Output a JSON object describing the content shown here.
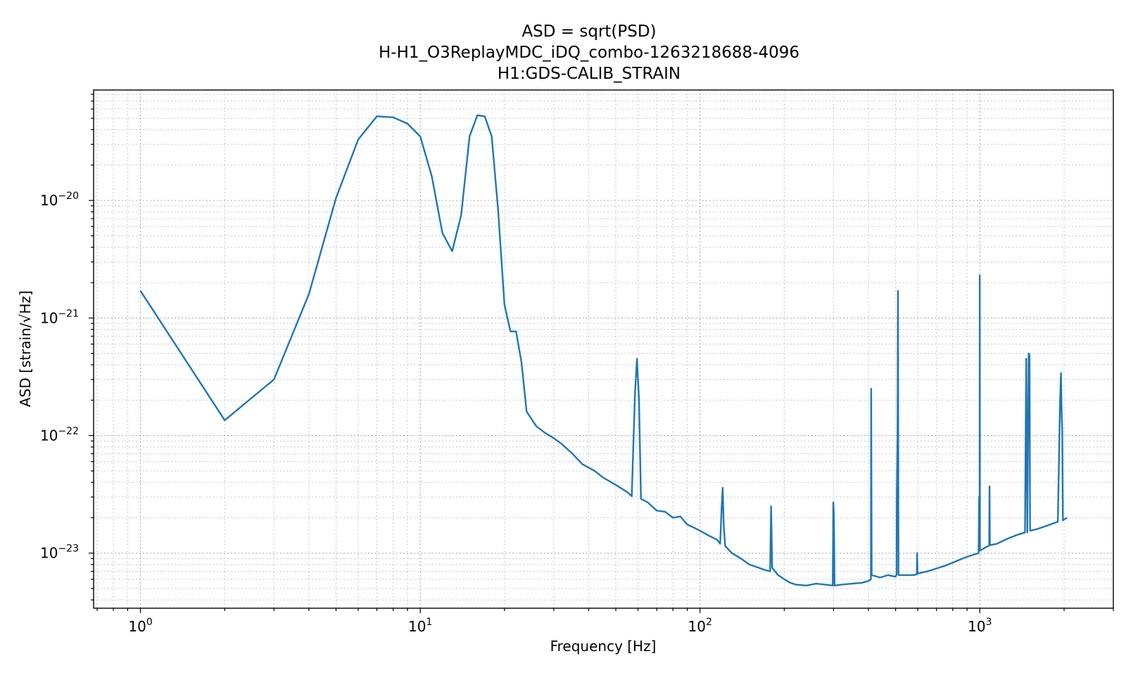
{
  "chart_data": {
    "type": "line",
    "title_lines": [
      "ASD = sqrt(PSD)",
      "H-H1_O3ReplayMDC_iDQ_combo-1263218688-4096",
      "H1:GDS-CALIB_STRAIN"
    ],
    "xlabel": "Frequency [Hz]",
    "ylabel": "ASD [strain/√Hz]",
    "x_scale": "log",
    "y_scale": "log",
    "xlim": [
      0.68,
      3000
    ],
    "ylim": [
      3.4e-24,
      8.7e-20
    ],
    "grid": "major and minor, dotted",
    "colors": {
      "line": "#1f77b4",
      "frame": "#000000"
    },
    "x_ticks": [
      {
        "value": 1,
        "base": "10",
        "exp": "0"
      },
      {
        "value": 10,
        "base": "10",
        "exp": "1"
      },
      {
        "value": 100,
        "base": "10",
        "exp": "2"
      },
      {
        "value": 1000,
        "base": "10",
        "exp": "3"
      }
    ],
    "y_ticks": [
      {
        "value": 1e-23,
        "base": "10",
        "exp": "−23"
      },
      {
        "value": 1e-22,
        "base": "10",
        "exp": "−22"
      },
      {
        "value": 1e-21,
        "base": "10",
        "exp": "−21"
      },
      {
        "value": 1e-20,
        "base": "10",
        "exp": "−20"
      }
    ],
    "series": [
      {
        "color": "#1f77b4",
        "points": [
          [
            1,
            1.7e-21
          ],
          [
            2,
            1.35e-22
          ],
          [
            3,
            3e-22
          ],
          [
            4,
            1.6e-21
          ],
          [
            5,
            1.05e-20
          ],
          [
            6,
            3.3e-20
          ],
          [
            7,
            5.2e-20
          ],
          [
            8,
            5.1e-20
          ],
          [
            9,
            4.5e-20
          ],
          [
            10,
            3.5e-20
          ],
          [
            11,
            1.6e-20
          ],
          [
            12,
            5.3e-21
          ],
          [
            13,
            3.7e-21
          ],
          [
            14,
            7.5e-21
          ],
          [
            15,
            3.5e-20
          ],
          [
            16,
            5.3e-20
          ],
          [
            17,
            5.2e-20
          ],
          [
            18,
            3.5e-20
          ],
          [
            19,
            8e-21
          ],
          [
            20,
            1.3e-21
          ],
          [
            21,
            7.7e-22
          ],
          [
            22,
            7.7e-22
          ],
          [
            23,
            4.2e-22
          ],
          [
            24,
            1.6e-22
          ],
          [
            26,
            1.2e-22
          ],
          [
            28,
            1.05e-22
          ],
          [
            30,
            9.5e-23
          ],
          [
            32,
            8.5e-23
          ],
          [
            35,
            7e-23
          ],
          [
            38,
            5.7e-23
          ],
          [
            42,
            5e-23
          ],
          [
            45,
            4.4e-23
          ],
          [
            50,
            3.8e-23
          ],
          [
            55,
            3.3e-23
          ],
          [
            57,
            3.05e-23
          ],
          [
            58.5,
            2.2e-22
          ],
          [
            59.5,
            4.5e-22
          ],
          [
            60.5,
            2e-22
          ],
          [
            61.5,
            2.9e-23
          ],
          [
            65,
            2.7e-23
          ],
          [
            70,
            2.3e-23
          ],
          [
            75,
            2.25e-23
          ],
          [
            80,
            2e-23
          ],
          [
            85,
            2.05e-23
          ],
          [
            90,
            1.75e-23
          ],
          [
            95,
            1.65e-23
          ],
          [
            100,
            1.55e-23
          ],
          [
            108,
            1.4e-23
          ],
          [
            115,
            1.3e-23
          ],
          [
            118,
            1.2e-23
          ],
          [
            119.5,
            2.5e-23
          ],
          [
            120.5,
            3.6e-23
          ],
          [
            121.5,
            1.7e-23
          ],
          [
            123,
            1.15e-23
          ],
          [
            130,
            1e-23
          ],
          [
            140,
            9e-24
          ],
          [
            150,
            8e-24
          ],
          [
            160,
            7.6e-24
          ],
          [
            170,
            7.2e-24
          ],
          [
            178,
            7e-24
          ],
          [
            179.5,
            2.5e-23
          ],
          [
            181,
            7.5e-24
          ],
          [
            190,
            6.5e-24
          ],
          [
            200,
            6e-24
          ],
          [
            210,
            5.6e-24
          ],
          [
            220,
            5.4e-24
          ],
          [
            240,
            5.3e-24
          ],
          [
            260,
            5.5e-24
          ],
          [
            280,
            5.4e-24
          ],
          [
            298,
            5.3e-24
          ],
          [
            299.5,
            2.7e-23
          ],
          [
            301,
            2e-23
          ],
          [
            302.5,
            5.3e-24
          ],
          [
            320,
            5.4e-24
          ],
          [
            350,
            5.5e-24
          ],
          [
            380,
            5.6e-24
          ],
          [
            400,
            5.8e-24
          ],
          [
            408,
            6e-24
          ],
          [
            409,
            2.5e-22
          ],
          [
            410.5,
            6.5e-24
          ],
          [
            440,
            6.2e-24
          ],
          [
            470,
            6.5e-24
          ],
          [
            500,
            6.3e-24
          ],
          [
            504,
            6.6e-24
          ],
          [
            505,
            3e-23
          ],
          [
            508,
            1e-22
          ],
          [
            510,
            1.7e-21
          ],
          [
            512,
            6.5e-24
          ],
          [
            540,
            6.5e-24
          ],
          [
            580,
            6.5e-24
          ],
          [
            595,
            6.6e-24
          ],
          [
            597,
            1e-23
          ],
          [
            599,
            6.7e-24
          ],
          [
            650,
            7e-24
          ],
          [
            700,
            7.4e-24
          ],
          [
            750,
            7.8e-24
          ],
          [
            800,
            8.3e-24
          ],
          [
            850,
            8.8e-24
          ],
          [
            900,
            9.3e-24
          ],
          [
            950,
            9.7e-24
          ],
          [
            990,
            1e-23
          ],
          [
            994,
            3e-23
          ],
          [
            998,
            1.05e-23
          ],
          [
            999.5,
            2.3e-21
          ],
          [
            1001,
            1.05e-23
          ],
          [
            1050,
            1.12e-23
          ],
          [
            1080,
            1.16e-23
          ],
          [
            1083,
            3.7e-23
          ],
          [
            1086,
            1.17e-23
          ],
          [
            1150,
            1.2e-23
          ],
          [
            1250,
            1.32e-23
          ],
          [
            1350,
            1.42e-23
          ],
          [
            1450,
            1.5e-23
          ],
          [
            1465,
            4.5e-22
          ],
          [
            1478,
            1.5e-23
          ],
          [
            1495,
            5e-22
          ],
          [
            1505,
            4.8e-22
          ],
          [
            1512,
            1.55e-23
          ],
          [
            1600,
            1.6e-23
          ],
          [
            1750,
            1.72e-23
          ],
          [
            1900,
            1.85e-23
          ],
          [
            1935,
            1.9e-22
          ],
          [
            1950,
            3.4e-22
          ],
          [
            1960,
            1.6e-22
          ],
          [
            1970,
            1.1e-22
          ],
          [
            1980,
            1.9e-23
          ],
          [
            2048,
            2e-23
          ]
        ]
      }
    ]
  }
}
